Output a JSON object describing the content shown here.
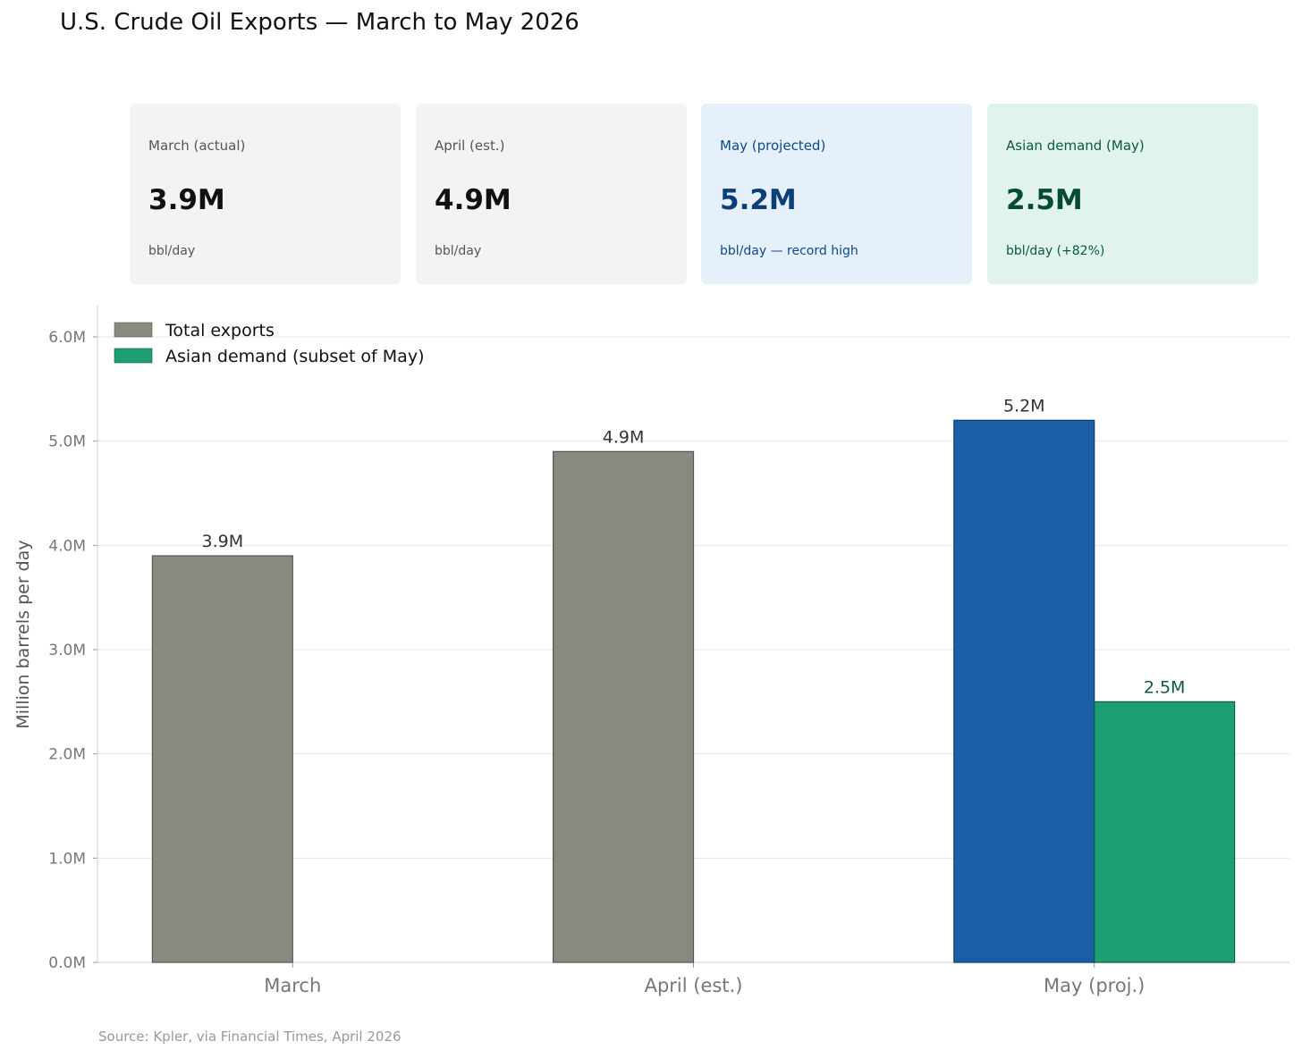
{
  "title": "U.S. Crude Oil Exports — March to May 2026",
  "cards": [
    {
      "label": "March (actual)",
      "value": "3.9M",
      "sub": "bbl/day",
      "bg": "#f3f3f1",
      "label_color": "#555",
      "value_color": "#111",
      "sub_color": "#555"
    },
    {
      "label": "April (est.)",
      "value": "4.9M",
      "sub": "bbl/day",
      "bg": "#f3f3f1",
      "label_color": "#555",
      "value_color": "#111",
      "sub_color": "#555"
    },
    {
      "label": "May (projected)",
      "value": "5.2M",
      "sub": "bbl/day — record high",
      "bg": "#e6f0fa",
      "label_color": "#0c4a8a",
      "value_color": "#0c3f78",
      "sub_color": "#0c4a8a"
    },
    {
      "label": "Asian demand (May)",
      "value": "2.5M",
      "sub": "bbl/day (+82%)",
      "bg": "#e0f3ec",
      "label_color": "#0b5a3f",
      "value_color": "#064a33",
      "sub_color": "#0b5a3f"
    }
  ],
  "source": "Source: Kpler, via Financial Times, April 2026",
  "chart_data": {
    "type": "bar",
    "categories": [
      "March",
      "April (est.)",
      "May (proj.)"
    ],
    "series": [
      {
        "name": "Total exports",
        "values": [
          3.9,
          4.9,
          5.2
        ],
        "labels": [
          "3.9M",
          "4.9M",
          "5.2M"
        ],
        "colors": [
          "#8a8980",
          "#8a8980",
          "#1b5fa6"
        ],
        "edge": [
          "#555",
          "#555",
          "#0d3a6e"
        ]
      },
      {
        "name": "Asian demand (subset of May)",
        "values": [
          null,
          null,
          2.5
        ],
        "labels": [
          null,
          null,
          "2.5M"
        ],
        "colors": [
          "#1e9e74",
          "#1e9e74",
          "#1e9e74"
        ],
        "edge": [
          "#0e5a40",
          "#0e5a40",
          "#0e5a40"
        ],
        "label_color": "#0b5a3f"
      }
    ],
    "legend_colors": [
      "#8a8980",
      "#1e9e74"
    ],
    "ylabel": "Million barrels per day",
    "yticks": [
      0,
      1,
      2,
      3,
      4,
      5,
      6
    ],
    "ytick_labels": [
      "0.0M",
      "1.0M",
      "2.0M",
      "3.0M",
      "4.0M",
      "5.0M",
      "6.0M"
    ],
    "ylim": [
      0,
      6.3
    ],
    "grid": true,
    "legend_position": "top-left"
  }
}
